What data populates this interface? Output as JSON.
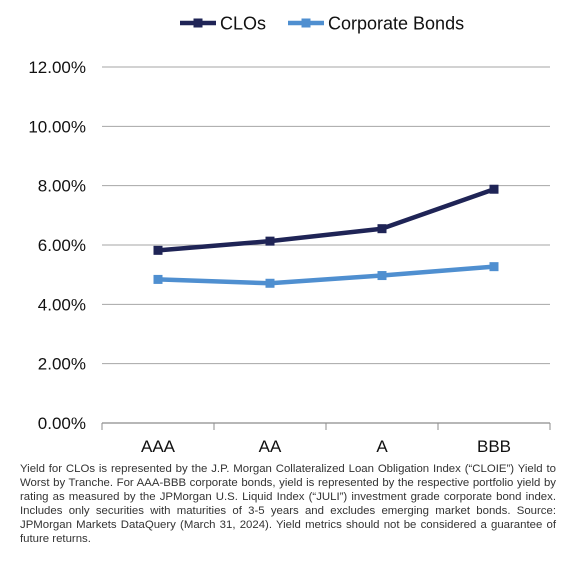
{
  "chart_data": {
    "type": "line",
    "title": "",
    "xlabel": "",
    "ylabel": "",
    "categories": [
      "AAA",
      "AA",
      "A",
      "BBB"
    ],
    "series": [
      {
        "name": "CLOs",
        "values": [
          5.82,
          6.13,
          6.55,
          7.88
        ],
        "color": "#1f2456",
        "marker": "square"
      },
      {
        "name": "Corporate Bonds",
        "values": [
          4.84,
          4.71,
          4.97,
          5.27
        ],
        "color": "#4f8fd0",
        "marker": "square"
      }
    ],
    "ylim": [
      0,
      12
    ],
    "yticks": [
      0,
      2,
      4,
      6,
      8,
      10,
      12
    ],
    "ytick_labels": [
      "0.00%",
      "2.00%",
      "4.00%",
      "6.00%",
      "8.00%",
      "10.00%",
      "12.00%"
    ],
    "grid": "horizontal",
    "legend_position": "top",
    "gridline_color": "#a6a6a6"
  },
  "footnote": "Yield for CLOs is represented by the J.P. Morgan Collateralized Loan Obligation Index (“CLOIE”) Yield to Worst by Tranche. For AAA-BBB corporate bonds, yield is represented by the respective portfolio yield by rating as measured by the JPMorgan U.S. Liquid Index (“JULI”) investment grade corporate bond index. Includes only securities with maturities of 3-5 years and excludes emerging market bonds. Source: JPMorgan Markets DataQuery (March 31, 2024). Yield metrics should not be considered a guarantee of future returns."
}
